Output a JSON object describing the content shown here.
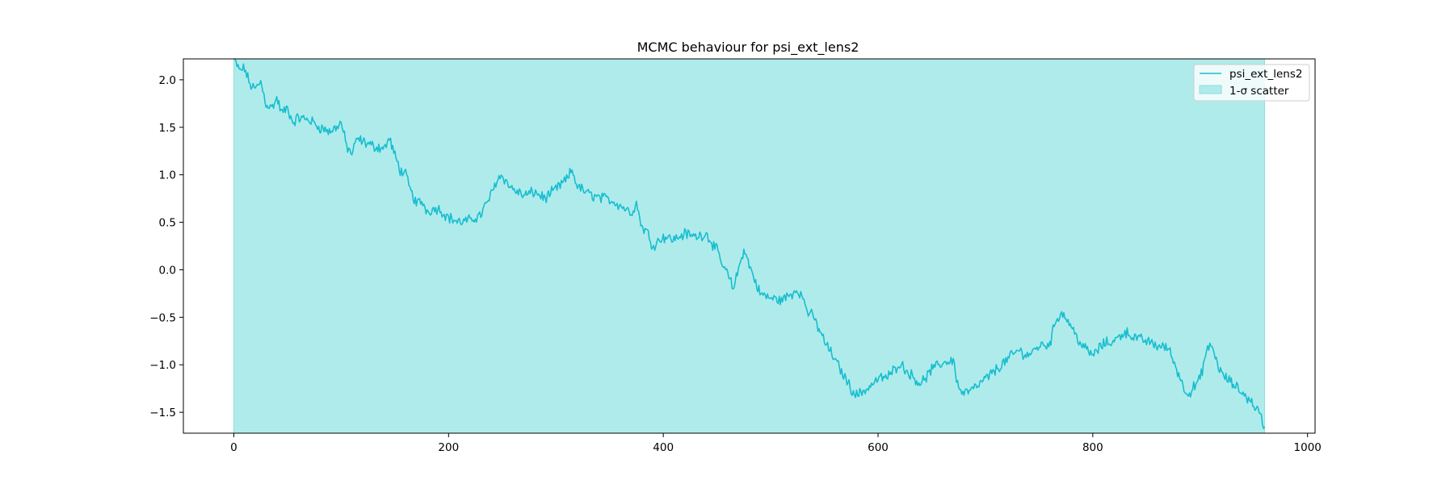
{
  "chart_data": {
    "type": "line",
    "title": "MCMC behaviour for psi_ext_lens2",
    "xlabel": "",
    "ylabel": "",
    "xlim": [
      -47,
      1007
    ],
    "ylim": [
      -1.72,
      2.22
    ],
    "xticks": [
      0,
      200,
      400,
      600,
      800,
      1000
    ],
    "xtick_labels": [
      "0",
      "200",
      "400",
      "600",
      "800",
      "1000"
    ],
    "yticks": [
      -1.5,
      -1.0,
      -0.5,
      0.0,
      0.5,
      1.0,
      1.5,
      2.0
    ],
    "ytick_labels": [
      "−1.5",
      "−1.0",
      "−0.5",
      "0.0",
      "0.5",
      "1.0",
      "1.5",
      "2.0"
    ],
    "grid": false,
    "legend_position": "top-right",
    "colors": {
      "line": "#17becf",
      "band": "#b0ebeb",
      "band_edge": "#8fdede"
    },
    "scatter_band": {
      "label": "1-σ scatter",
      "x_start": 0,
      "x_end": 960,
      "lower": -1.72,
      "upper": 2.22
    },
    "series": [
      {
        "name": "psi_ext_lens2",
        "x_anchors": [
          0,
          5,
          10,
          15,
          20,
          25,
          30,
          35,
          40,
          45,
          50,
          55,
          60,
          70,
          80,
          90,
          100,
          105,
          110,
          115,
          120,
          130,
          140,
          145,
          150,
          155,
          160,
          165,
          170,
          175,
          180,
          190,
          200,
          210,
          220,
          230,
          240,
          245,
          250,
          255,
          260,
          270,
          280,
          290,
          300,
          310,
          315,
          320,
          330,
          340,
          350,
          360,
          370,
          375,
          380,
          385,
          390,
          400,
          410,
          420,
          430,
          440,
          450,
          455,
          460,
          465,
          470,
          475,
          480,
          490,
          500,
          510,
          520,
          525,
          530,
          535,
          540,
          550,
          560,
          570,
          575,
          580,
          590,
          600,
          610,
          620,
          630,
          640,
          650,
          660,
          670,
          675,
          680,
          690,
          700,
          710,
          720,
          730,
          740,
          750,
          760,
          765,
          770,
          775,
          780,
          790,
          800,
          810,
          820,
          830,
          840,
          850,
          860,
          870,
          875,
          880,
          885,
          890,
          900,
          905,
          910,
          915,
          920,
          930,
          940,
          950,
          955,
          958,
          960
        ],
        "y_anchors": [
          2.22,
          2.1,
          2.12,
          1.95,
          1.9,
          1.98,
          1.75,
          1.7,
          1.8,
          1.65,
          1.7,
          1.55,
          1.6,
          1.58,
          1.5,
          1.45,
          1.55,
          1.3,
          1.22,
          1.38,
          1.35,
          1.3,
          1.28,
          1.38,
          1.2,
          1.05,
          1.0,
          0.82,
          0.7,
          0.72,
          0.62,
          0.65,
          0.55,
          0.5,
          0.52,
          0.58,
          0.8,
          0.95,
          1.0,
          0.9,
          0.85,
          0.78,
          0.82,
          0.75,
          0.85,
          0.95,
          1.05,
          0.88,
          0.8,
          0.76,
          0.74,
          0.68,
          0.6,
          0.7,
          0.45,
          0.4,
          0.25,
          0.35,
          0.32,
          0.38,
          0.35,
          0.38,
          0.2,
          0.05,
          -0.05,
          -0.2,
          0.0,
          0.22,
          0.05,
          -0.25,
          -0.3,
          -0.32,
          -0.25,
          -0.2,
          -0.3,
          -0.45,
          -0.5,
          -0.75,
          -0.95,
          -1.15,
          -1.25,
          -1.32,
          -1.25,
          -1.15,
          -1.12,
          -0.98,
          -1.1,
          -1.2,
          -1.05,
          -0.98,
          -0.95,
          -1.25,
          -1.3,
          -1.25,
          -1.15,
          -1.05,
          -0.95,
          -0.85,
          -0.9,
          -0.8,
          -0.78,
          -0.55,
          -0.45,
          -0.5,
          -0.6,
          -0.8,
          -0.9,
          -0.78,
          -0.75,
          -0.65,
          -0.72,
          -0.75,
          -0.8,
          -0.82,
          -0.95,
          -1.1,
          -1.25,
          -1.3,
          -1.15,
          -0.9,
          -0.78,
          -0.95,
          -1.1,
          -1.2,
          -1.3,
          -1.42,
          -1.5,
          -1.6,
          -1.68
        ]
      }
    ]
  }
}
